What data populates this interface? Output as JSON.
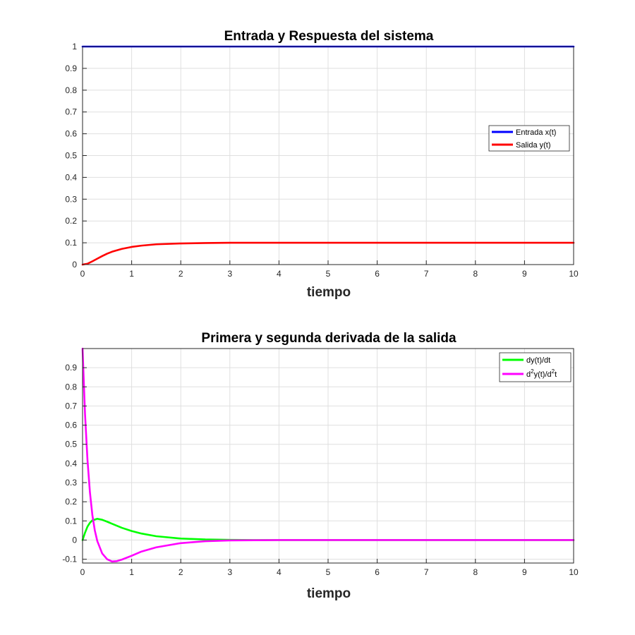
{
  "chart_data": [
    {
      "type": "line",
      "title": "Entrada y Respuesta del sistema",
      "xlabel": "tiempo",
      "ylabel": "",
      "xlim": [
        0,
        10
      ],
      "ylim": [
        0,
        1
      ],
      "xticks": [
        "0",
        "1",
        "2",
        "3",
        "4",
        "5",
        "6",
        "7",
        "8",
        "9",
        "10"
      ],
      "yticks": [
        "0",
        "0.1",
        "0.2",
        "0.3",
        "0.4",
        "0.5",
        "0.6",
        "0.7",
        "0.8",
        "0.9",
        "1"
      ],
      "grid": true,
      "legend_position": "right",
      "series": [
        {
          "name": "Entrada x(t)",
          "color": "#0000ff",
          "x": [
            0,
            10
          ],
          "y": [
            1,
            1
          ]
        },
        {
          "name": "Salida y(t)",
          "color": "#ff0000",
          "x": [
            0,
            0.1,
            0.2,
            0.3,
            0.4,
            0.5,
            0.6,
            0.8,
            1.0,
            1.2,
            1.5,
            2.0,
            2.5,
            3.0,
            4.0,
            5.0,
            6.0,
            7.0,
            8.0,
            9.0,
            10.0
          ],
          "y": [
            0,
            0.004,
            0.015,
            0.027,
            0.039,
            0.05,
            0.059,
            0.072,
            0.081,
            0.087,
            0.093,
            0.097,
            0.099,
            0.1,
            0.1,
            0.1,
            0.1,
            0.1,
            0.1,
            0.1,
            0.1
          ]
        }
      ]
    },
    {
      "type": "line",
      "title": "Primera y segunda derivada de la salida",
      "xlabel": "tiempo",
      "ylabel": "",
      "xlim": [
        0,
        10
      ],
      "ylim": [
        -0.12,
        1
      ],
      "xticks": [
        "0",
        "1",
        "2",
        "3",
        "4",
        "5",
        "6",
        "7",
        "8",
        "9",
        "10"
      ],
      "yticks": [
        "-0.1",
        "0",
        "0.1",
        "0.2",
        "0.3",
        "0.4",
        "0.5",
        "0.6",
        "0.7",
        "0.8",
        "0.9"
      ],
      "grid": true,
      "legend_position": "top-right",
      "series": [
        {
          "name": "dy(t)/dt",
          "color": "#00ff00",
          "x": [
            0,
            0.05,
            0.1,
            0.15,
            0.2,
            0.3,
            0.4,
            0.5,
            0.6,
            0.8,
            1.0,
            1.2,
            1.5,
            2.0,
            2.5,
            3.0,
            3.5,
            4.0,
            5.0,
            6.0,
            7.0,
            8.0,
            9.0,
            10.0
          ],
          "y": [
            0,
            0.038,
            0.07,
            0.09,
            0.103,
            0.111,
            0.106,
            0.096,
            0.085,
            0.064,
            0.047,
            0.034,
            0.02,
            0.008,
            0.003,
            0.001,
            0.0,
            0.0,
            0.0,
            0.0,
            0.0,
            0.0,
            0.0,
            0.0
          ]
        },
        {
          "name": "d²y(t)/d²t",
          "legend_parts": [
            "d",
            "2",
            "y(t)/d",
            "2",
            "t"
          ],
          "color": "#ff00ff",
          "x": [
            0,
            0.05,
            0.1,
            0.15,
            0.2,
            0.25,
            0.3,
            0.4,
            0.5,
            0.6,
            0.7,
            0.8,
            1.0,
            1.2,
            1.5,
            2.0,
            2.5,
            3.0,
            3.5,
            4.0,
            5.0,
            6.0,
            7.0,
            8.0,
            9.0,
            10.0
          ],
          "y": [
            1.0,
            0.66,
            0.42,
            0.25,
            0.13,
            0.05,
            -0.005,
            -0.07,
            -0.1,
            -0.112,
            -0.11,
            -0.102,
            -0.082,
            -0.06,
            -0.038,
            -0.016,
            -0.006,
            -0.002,
            -0.001,
            0.0,
            0.0,
            0.0,
            0.0,
            0.0,
            0.0,
            0.0
          ]
        }
      ]
    }
  ]
}
